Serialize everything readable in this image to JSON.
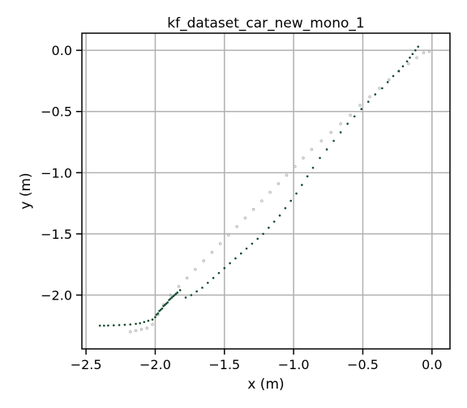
{
  "chart_data": {
    "type": "scatter",
    "title": "kf_dataset_car_new_mono_1",
    "xlabel": "x (m)",
    "ylabel": "y (m)",
    "xlim": [
      -2.53,
      0.13
    ],
    "ylim": [
      -2.44,
      0.14
    ],
    "xticks": [
      -2.5,
      -2.0,
      -1.5,
      -1.0,
      -0.5,
      0.0
    ],
    "xtick_labels": [
      "−2.5",
      "−2.0",
      "−1.5",
      "−1.0",
      "−0.5",
      "0.0"
    ],
    "yticks": [
      0.0,
      -0.5,
      -1.0,
      -1.5,
      -2.0
    ],
    "ytick_labels": [
      "0.0",
      "−0.5",
      "−1.0",
      "−1.5",
      "−2.0"
    ],
    "grid": true,
    "series": [
      {
        "style": "hollow gray circles",
        "color": "#b0b0b0",
        "x": [
          -0.02,
          -0.06,
          -0.11,
          -0.17,
          -0.24,
          -0.31,
          -0.38,
          -0.45,
          -0.52,
          -0.59,
          -0.66,
          -0.73,
          -0.8,
          -0.87,
          -0.93,
          -0.99,
          -1.05,
          -1.11,
          -1.17,
          -1.23,
          -1.29,
          -1.35,
          -1.41,
          -1.47,
          -1.53,
          -1.59,
          -1.65,
          -1.71,
          -1.77,
          -1.83,
          -1.89,
          -1.94,
          -1.98,
          -2.02,
          -2.06,
          -2.1,
          -2.14,
          -2.18
        ],
        "y": [
          -0.01,
          -0.02,
          -0.06,
          -0.11,
          -0.17,
          -0.24,
          -0.31,
          -0.38,
          -0.45,
          -0.53,
          -0.6,
          -0.67,
          -0.74,
          -0.81,
          -0.88,
          -0.95,
          -1.02,
          -1.09,
          -1.16,
          -1.23,
          -1.3,
          -1.37,
          -1.44,
          -1.51,
          -1.58,
          -1.65,
          -1.72,
          -1.79,
          -1.86,
          -1.93,
          -2.0,
          -2.08,
          -2.16,
          -2.24,
          -2.27,
          -2.28,
          -2.29,
          -2.3
        ]
      },
      {
        "style": "dark green points",
        "color": "#0e4b2e",
        "x": [
          -0.1,
          -0.12,
          -0.14,
          -0.16,
          -0.18,
          -0.21,
          -0.24,
          -0.28,
          -0.32,
          -0.36,
          -0.41,
          -0.46,
          -0.51,
          -0.56,
          -0.61,
          -0.66,
          -0.71,
          -0.76,
          -0.81,
          -0.86,
          -0.9,
          -0.94,
          -0.98,
          -1.02,
          -1.06,
          -1.1,
          -1.14,
          -1.18,
          -1.22,
          -1.26,
          -1.3,
          -1.34,
          -1.38,
          -1.42,
          -1.46,
          -1.5,
          -1.54,
          -1.58,
          -1.62,
          -1.66,
          -1.7,
          -1.74,
          -1.78,
          -1.82,
          -1.84,
          -1.85,
          -1.86,
          -1.87,
          -1.88,
          -1.89,
          -1.9,
          -1.91,
          -1.92,
          -1.93,
          -1.94,
          -1.95,
          -1.96,
          -1.97,
          -1.98,
          -1.99,
          -2.0,
          -2.02,
          -2.05,
          -2.08,
          -2.11,
          -2.14,
          -2.18,
          -2.22,
          -2.26,
          -2.3,
          -2.34,
          -2.37,
          -2.4
        ],
        "y": [
          0.03,
          0.0,
          -0.03,
          -0.06,
          -0.09,
          -0.13,
          -0.17,
          -0.21,
          -0.26,
          -0.31,
          -0.36,
          -0.42,
          -0.48,
          -0.54,
          -0.6,
          -0.67,
          -0.74,
          -0.81,
          -0.88,
          -0.96,
          -1.03,
          -1.1,
          -1.17,
          -1.23,
          -1.29,
          -1.35,
          -1.4,
          -1.45,
          -1.5,
          -1.54,
          -1.58,
          -1.62,
          -1.66,
          -1.7,
          -1.74,
          -1.78,
          -1.82,
          -1.86,
          -1.9,
          -1.94,
          -1.97,
          -2.0,
          -2.02,
          -1.96,
          -1.98,
          -1.99,
          -2.0,
          -2.01,
          -2.02,
          -2.03,
          -2.04,
          -2.06,
          -2.07,
          -2.08,
          -2.09,
          -2.11,
          -2.12,
          -2.13,
          -2.15,
          -2.16,
          -2.18,
          -2.2,
          -2.21,
          -2.22,
          -2.23,
          -2.235,
          -2.24,
          -2.243,
          -2.245,
          -2.247,
          -2.249,
          -2.25,
          -2.25
        ]
      }
    ]
  }
}
